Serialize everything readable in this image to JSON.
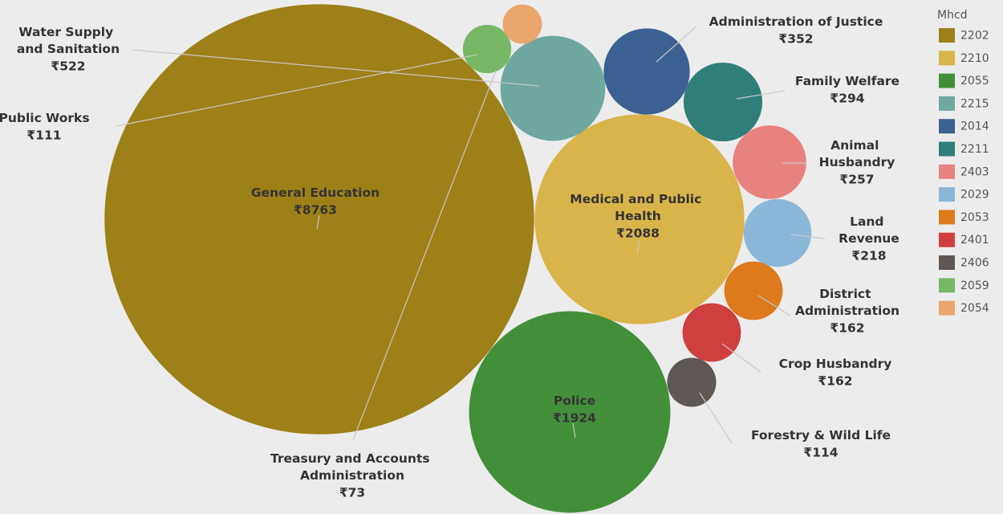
{
  "chart_data": {
    "type": "packed-bubble",
    "legend_title": "Mhcd",
    "categories": [
      "General Education",
      "Medical and Public Health",
      "Police",
      "Water Supply and Sanitation",
      "Administration of Justice",
      "Family Welfare",
      "Animal Husbandry",
      "Land Revenue",
      "District Administration",
      "Crop Husbandry",
      "Forestry & Wild Life",
      "Public Works",
      "Treasury and Accounts Administration"
    ],
    "codes": [
      "2202",
      "2210",
      "2055",
      "2215",
      "2014",
      "2211",
      "2403",
      "2029",
      "2053",
      "2401",
      "2406",
      "2059",
      "2054"
    ],
    "values": [
      8763,
      2088,
      1924,
      522,
      352,
      294,
      257,
      218,
      162,
      162,
      114,
      111,
      73
    ],
    "value_labels": [
      "₹8763",
      "₹2088",
      "₹1924",
      "₹522",
      "₹352",
      "₹294",
      "₹257",
      "₹218",
      "₹162",
      "₹162",
      "₹114",
      "₹111",
      "₹73"
    ],
    "colors": [
      "#9e8019",
      "#d9b44a",
      "#428f3a",
      "#6fa8a0",
      "#3a6191",
      "#2f7f78",
      "#e8827f",
      "#8ab7d8",
      "#dc7a1c",
      "#cf3f3f",
      "#5f5754",
      "#76b866",
      "#e9a56b"
    ]
  }
}
